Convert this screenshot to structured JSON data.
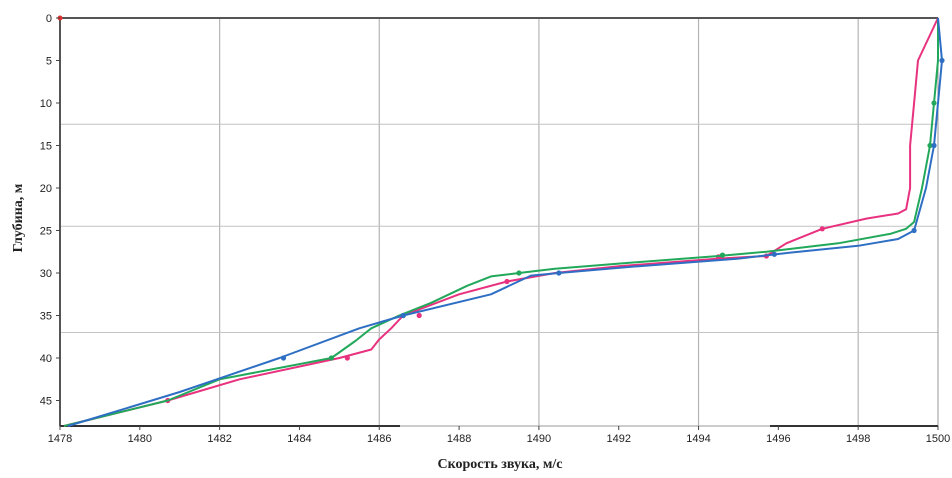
{
  "chart_data": {
    "type": "line",
    "xlabel": "Скорость звука, м/с",
    "ylabel": "Глубина, м",
    "xlim": [
      1478,
      1500
    ],
    "ylim": [
      0,
      48
    ],
    "y_inverted": true,
    "x_ticks": [
      "1478",
      "1480",
      "1482",
      "1484",
      "1486",
      "1488",
      "1490",
      "1492",
      "1494",
      "1496",
      "1498",
      "1500"
    ],
    "y_ticks": [
      "0",
      "5",
      "10",
      "15",
      "20",
      "25",
      "30",
      "35",
      "40",
      "45"
    ],
    "grid": true,
    "series": [
      {
        "color": "#e8317f",
        "points": [
          [
            1500,
            0
          ],
          [
            1499.9,
            1
          ],
          [
            1499.5,
            5
          ],
          [
            1499.4,
            10
          ],
          [
            1499.3,
            15
          ],
          [
            1499.3,
            20
          ],
          [
            1499.2,
            22.5
          ],
          [
            1499.0,
            23
          ],
          [
            1498.2,
            23.6
          ],
          [
            1497.1,
            24.8
          ],
          [
            1496.2,
            26.5
          ],
          [
            1495.7,
            28
          ],
          [
            1494.5,
            28.3
          ],
          [
            1492.0,
            29.2
          ],
          [
            1490.4,
            30
          ],
          [
            1489.2,
            31
          ],
          [
            1488.0,
            32.5
          ],
          [
            1486.6,
            35
          ],
          [
            1486.3,
            36.5
          ],
          [
            1486.0,
            37.8
          ],
          [
            1485.8,
            39
          ],
          [
            1485.0,
            40
          ],
          [
            1482.5,
            42.5
          ],
          [
            1480.7,
            45
          ],
          [
            1478.1,
            48
          ]
        ],
        "markers": [
          [
            1497.1,
            24.8
          ],
          [
            1495.7,
            28
          ],
          [
            1494.5,
            28.1
          ],
          [
            1489.2,
            31
          ],
          [
            1487.0,
            35
          ],
          [
            1485.2,
            40
          ],
          [
            1480.7,
            45
          ]
        ]
      },
      {
        "color": "#22a85a",
        "points": [
          [
            1500,
            0
          ],
          [
            1500,
            5
          ],
          [
            1499.9,
            10
          ],
          [
            1499.8,
            15
          ],
          [
            1499.6,
            20
          ],
          [
            1499.4,
            24
          ],
          [
            1499.2,
            24.8
          ],
          [
            1498.8,
            25.4
          ],
          [
            1497.5,
            26.5
          ],
          [
            1495.7,
            27.5
          ],
          [
            1494.5,
            28
          ],
          [
            1492.0,
            28.9
          ],
          [
            1490.4,
            29.5
          ],
          [
            1489.5,
            30
          ],
          [
            1488.8,
            30.4
          ],
          [
            1488.2,
            31.5
          ],
          [
            1487.3,
            33.5
          ],
          [
            1486.5,
            35
          ],
          [
            1485.8,
            36.5
          ],
          [
            1485.4,
            38
          ],
          [
            1484.8,
            40
          ],
          [
            1482.0,
            42.5
          ],
          [
            1480.7,
            45
          ],
          [
            1478.1,
            48
          ]
        ],
        "markers": [
          [
            1499.9,
            10
          ],
          [
            1499.8,
            15
          ],
          [
            1494.6,
            27.9
          ],
          [
            1489.5,
            30
          ],
          [
            1486.6,
            35
          ],
          [
            1484.8,
            40
          ]
        ]
      },
      {
        "color": "#2e6fc4",
        "points": [
          [
            1500,
            0
          ],
          [
            1500.1,
            5
          ],
          [
            1500,
            10
          ],
          [
            1499.9,
            15
          ],
          [
            1499.7,
            20
          ],
          [
            1499.4,
            25
          ],
          [
            1499.0,
            26
          ],
          [
            1498.0,
            26.8
          ],
          [
            1496.3,
            27.6
          ],
          [
            1495.0,
            28.3
          ],
          [
            1492.5,
            29.2
          ],
          [
            1490.5,
            30
          ],
          [
            1489.8,
            30.3
          ],
          [
            1488.8,
            32.5
          ],
          [
            1486.6,
            35
          ],
          [
            1485.5,
            36.5
          ],
          [
            1483.5,
            40
          ],
          [
            1481.0,
            44
          ],
          [
            1478.2,
            48
          ]
        ],
        "markers": [
          [
            1500.1,
            5
          ],
          [
            1499.9,
            15
          ],
          [
            1499.4,
            25
          ],
          [
            1495.9,
            27.8
          ],
          [
            1490.5,
            30
          ],
          [
            1486.6,
            35
          ],
          [
            1483.6,
            40
          ]
        ]
      }
    ]
  }
}
